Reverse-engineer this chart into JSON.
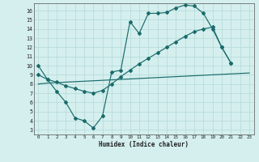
{
  "xlabel": "Humidex (Indice chaleur)",
  "bg_color": "#d4efee",
  "line_color": "#1a6b6b",
  "grid_color": "#b8dcdb",
  "xlim": [
    -0.5,
    23.5
  ],
  "ylim": [
    2.5,
    16.8
  ],
  "xticks": [
    0,
    1,
    2,
    3,
    4,
    5,
    6,
    7,
    8,
    9,
    10,
    11,
    12,
    13,
    14,
    15,
    16,
    17,
    18,
    19,
    20,
    21,
    22,
    23
  ],
  "yticks": [
    3,
    4,
    5,
    6,
    7,
    8,
    9,
    10,
    11,
    12,
    13,
    14,
    15,
    16
  ],
  "line1_y": [
    10.0,
    8.5,
    7.2,
    6.0,
    4.3,
    4.0,
    3.2,
    4.5,
    9.3,
    9.5,
    14.8,
    13.5,
    15.7,
    15.7,
    15.8,
    16.3,
    16.6,
    16.5,
    15.7,
    14.0,
    12.0,
    10.3,
    null,
    null
  ],
  "line2_y": [
    9.0,
    8.5,
    8.2,
    7.8,
    7.5,
    7.2,
    7.0,
    7.3,
    8.0,
    8.8,
    9.5,
    10.2,
    10.8,
    11.4,
    12.0,
    12.6,
    13.2,
    13.7,
    14.0,
    14.2,
    12.0,
    10.3,
    null,
    null
  ],
  "line3_y": [
    8.0,
    8.1,
    8.15,
    8.2,
    8.25,
    8.3,
    8.35,
    8.4,
    8.45,
    8.5,
    8.55,
    8.6,
    8.65,
    8.7,
    8.75,
    8.8,
    8.85,
    8.9,
    8.95,
    9.0,
    9.05,
    9.1,
    9.15,
    9.2
  ]
}
